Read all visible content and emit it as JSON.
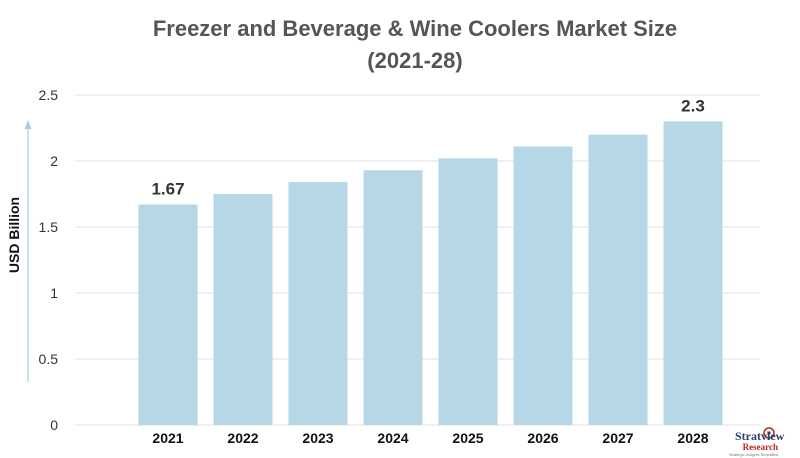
{
  "chart_data": {
    "type": "bar",
    "title_line1": "Freezer and Beverage & Wine Coolers Market Size",
    "title_line2": "(2021-28)",
    "xlabel": "",
    "ylabel": "USD Billion",
    "categories": [
      "2021",
      "2022",
      "2023",
      "2024",
      "2025",
      "2026",
      "2027",
      "2028"
    ],
    "values": [
      1.67,
      1.75,
      1.84,
      1.93,
      2.02,
      2.11,
      2.2,
      2.3
    ],
    "data_labels": [
      {
        "category": "2021",
        "text": "1.67"
      },
      {
        "category": "2028",
        "text": "2.3"
      }
    ],
    "ylim": [
      0,
      2.5
    ],
    "yticks": [
      "0",
      "0.5",
      "1",
      "1.5",
      "2",
      "2.5"
    ],
    "grid": true,
    "bar_color": "#b6d7e6",
    "axis_arrow_color": "#a9cde0"
  },
  "logo": {
    "brand": "Stratview",
    "sub": "Research",
    "tagline": "Strategic Insights Simplified"
  }
}
